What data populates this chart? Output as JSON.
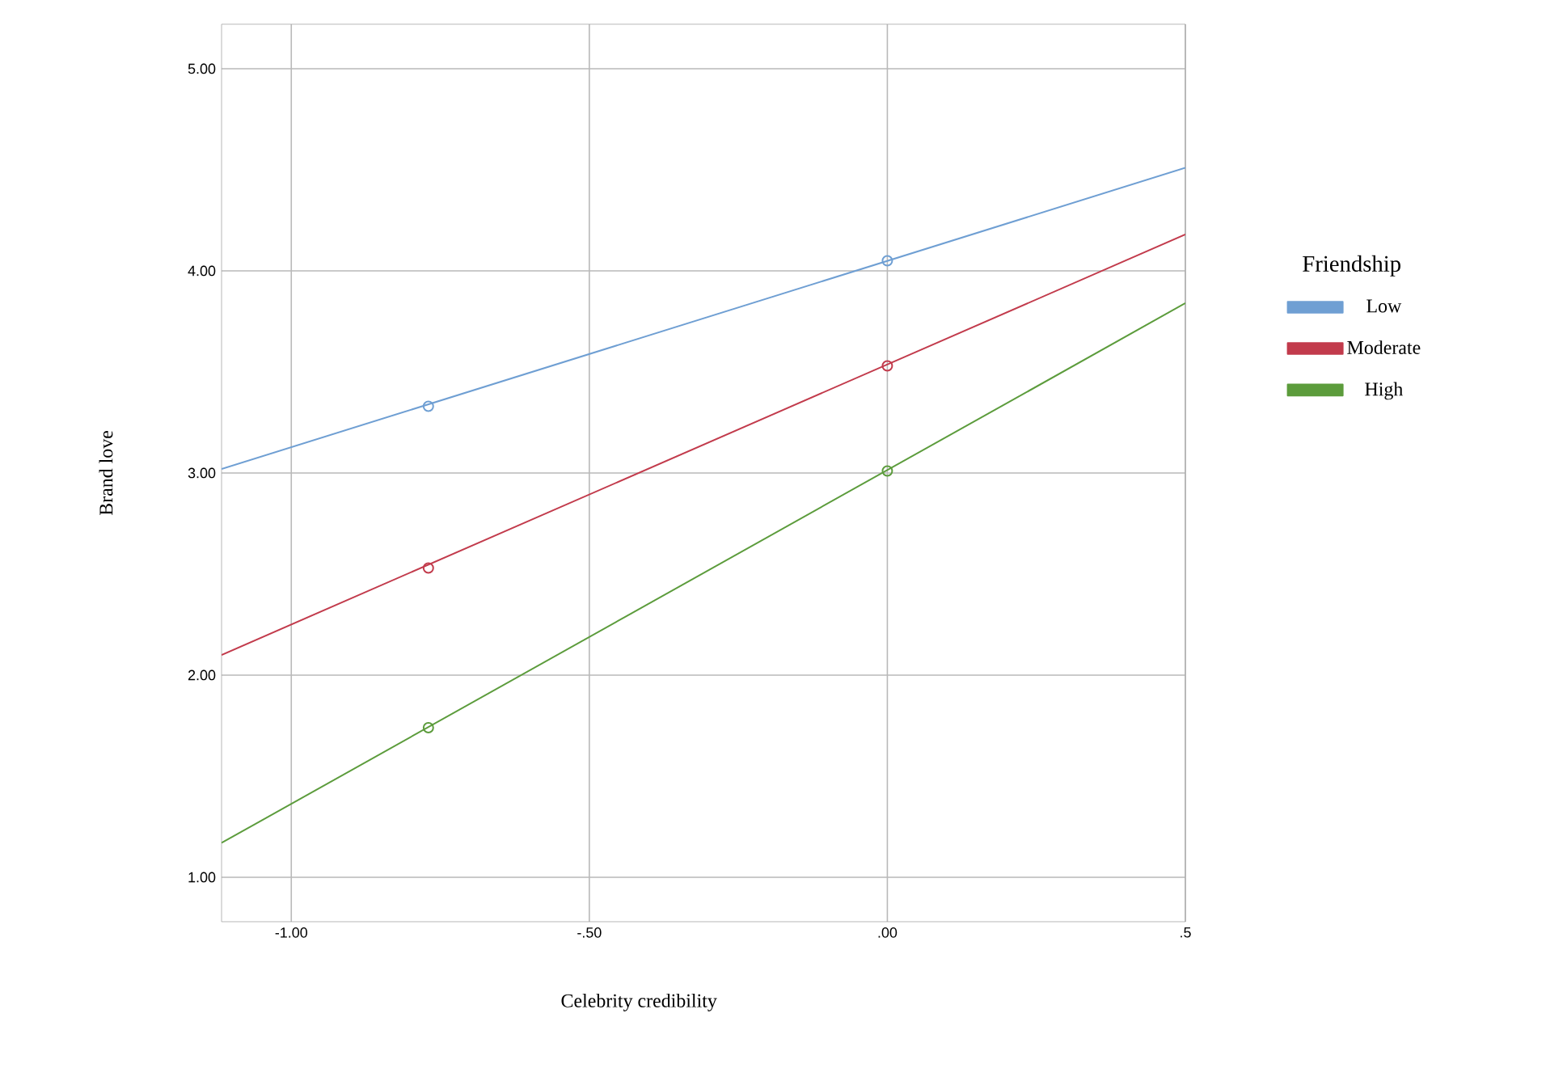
{
  "chart_data": {
    "type": "line",
    "xlabel": "Celebrity credibility",
    "ylabel": "Brand love",
    "legend_title": "Friendship",
    "legend": "right",
    "grid": true,
    "marker": "none",
    "line_style": "solid",
    "xlim": [
      -1.117,
      0.5
    ],
    "ylim": [
      0.78,
      5.22
    ],
    "xticks": [
      {
        "value": -1,
        "label": "-1.00"
      },
      {
        "value": -0.5,
        "label": "-.50"
      },
      {
        "value": 0,
        "label": ".00"
      },
      {
        "value": 0.5,
        "label": ".5"
      }
    ],
    "yticks": [
      {
        "value": 1,
        "label": "1.00"
      },
      {
        "value": 2,
        "label": "2.00"
      },
      {
        "value": 3,
        "label": "3.00"
      },
      {
        "value": 4,
        "label": "4.00"
      },
      {
        "value": 5,
        "label": "5.00"
      }
    ],
    "series": [
      {
        "name": "Low",
        "color": "#6f9fd3",
        "x": [
          -1.117,
          0.5
        ],
        "values": [
          3.02,
          4.51
        ]
      },
      {
        "name": "Moderate",
        "color": "#c23b4c",
        "x": [
          -1.117,
          0.5
        ],
        "values": [
          2.1,
          4.18
        ]
      },
      {
        "name": "High",
        "color": "#5c9c3c",
        "x": [
          -1.117,
          0.5
        ],
        "values": [
          1.17,
          3.84
        ]
      },
      {
        "type": "scatter",
        "marker": "circle",
        "color": "#6f9fd3",
        "x": [
          -0.77,
          0
        ],
        "values": [
          3.33,
          4.05
        ]
      },
      {
        "type": "scatter",
        "marker": "circle",
        "color": "#c23b4c",
        "x": [
          -0.77,
          0
        ],
        "values": [
          2.53,
          3.53
        ]
      },
      {
        "type": "scatter",
        "marker": "circle",
        "color": "#5c9c3c",
        "x": [
          -0.77,
          0
        ],
        "values": [
          1.74,
          3.01
        ]
      }
    ]
  }
}
